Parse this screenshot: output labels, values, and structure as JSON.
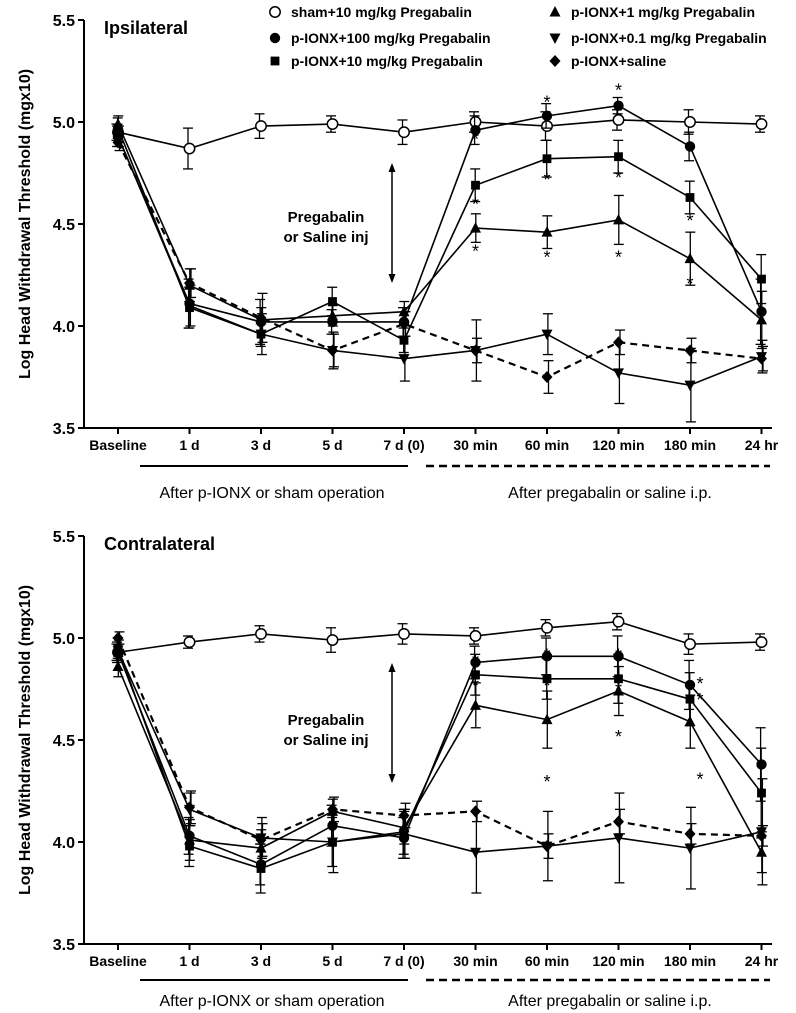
{
  "chart_data": [
    {
      "type": "line",
      "title": "Ipsilateral",
      "ylabel": "Log Head Withdrawal Threshold (mgx10)",
      "xlabel": "",
      "ylim": [
        3.5,
        5.5
      ],
      "yticks": [
        "3.5",
        "4.0",
        "4.5",
        "5.0",
        "5.5"
      ],
      "categories": [
        "Baseline",
        "1 d",
        "3 d",
        "5 d",
        "7 d (0)",
        "30 min",
        "60 min",
        "120 min",
        "180 min",
        "24 hr"
      ],
      "phase_labels": [
        "After p-IONX or sham operation",
        "After pregabalin or saline i.p."
      ],
      "annotation": [
        "Pregabalin",
        "or Saline inj"
      ],
      "legend_position": "top-right",
      "grid": false,
      "series": [
        {
          "name": "sham+10 mg/kg Pregabalin",
          "marker": "open-circle",
          "dashed": false,
          "values": [
            4.95,
            4.87,
            4.98,
            4.99,
            4.95,
            5.0,
            4.98,
            5.01,
            5.0,
            4.99
          ],
          "errors": [
            0.04,
            0.1,
            0.06,
            0.04,
            0.06,
            0.05,
            0.07,
            0.05,
            0.06,
            0.04
          ]
        },
        {
          "name": "p-IONX+100 mg/kg Pregabalin",
          "marker": "filled-circle",
          "dashed": false,
          "values": [
            4.93,
            4.11,
            4.02,
            4.02,
            4.02,
            4.96,
            5.03,
            5.08,
            4.88,
            4.07
          ],
          "errors": [
            0.05,
            0.12,
            0.11,
            0.06,
            0.07,
            0.07,
            0.06,
            0.04,
            0.07,
            0.16
          ]
        },
        {
          "name": "p-IONX+10 mg/kg Pregabalin",
          "marker": "filled-square",
          "dashed": false,
          "values": [
            4.97,
            4.09,
            3.96,
            4.12,
            3.93,
            4.69,
            4.82,
            4.83,
            4.63,
            4.23
          ],
          "errors": [
            0.05,
            0.1,
            0.06,
            0.07,
            0.06,
            0.08,
            0.09,
            0.08,
            0.08,
            0.12
          ]
        },
        {
          "name": "p-IONX+1 mg/kg Pregabalin",
          "marker": "filled-triangle-up",
          "dashed": false,
          "values": [
            4.99,
            4.2,
            4.03,
            4.05,
            4.07,
            4.48,
            4.46,
            4.52,
            4.33,
            4.03
          ],
          "errors": [
            0.04,
            0.08,
            0.06,
            0.05,
            0.05,
            0.07,
            0.08,
            0.12,
            0.13,
            0.14
          ]
        },
        {
          "name": "p-IONX+0.1 mg/kg Pregabalin",
          "marker": "filled-triangle-down",
          "dashed": false,
          "values": [
            4.93,
            4.1,
            3.96,
            3.88,
            3.84,
            3.88,
            3.96,
            3.77,
            3.71,
            3.85
          ],
          "errors": [
            0.05,
            0.1,
            0.1,
            0.09,
            0.11,
            0.15,
            0.1,
            0.15,
            0.18,
            0.08
          ]
        },
        {
          "name": "p-IONX+saline",
          "marker": "filled-diamond",
          "dashed": true,
          "values": [
            4.9,
            4.21,
            4.04,
            3.88,
            4.01,
            3.88,
            3.75,
            3.92,
            3.88,
            3.84
          ],
          "errors": [
            0.04,
            0.07,
            0.12,
            0.08,
            0.06,
            0.06,
            0.08,
            0.06,
            0.06,
            0.06
          ]
        }
      ],
      "significance_marks": [
        {
          "category": "30 min",
          "y": 4.93
        },
        {
          "category": "30 min",
          "y": 4.61
        },
        {
          "category": "30 min",
          "y": 4.38
        },
        {
          "category": "60 min",
          "y": 5.11
        },
        {
          "category": "60 min",
          "y": 4.73
        },
        {
          "category": "60 min",
          "y": 4.35
        },
        {
          "category": "120 min",
          "y": 5.17
        },
        {
          "category": "120 min",
          "y": 4.74
        },
        {
          "category": "120 min",
          "y": 4.35
        },
        {
          "category": "180 min",
          "y": 4.88
        },
        {
          "category": "180 min",
          "y": 4.53
        },
        {
          "category": "180 min",
          "y": 4.22
        }
      ]
    },
    {
      "type": "line",
      "title": "Contralateral",
      "ylabel": "Log Head Withdrawal Threshold (mgx10)",
      "xlabel": "",
      "ylim": [
        3.5,
        5.5
      ],
      "yticks": [
        "3.5",
        "4.0",
        "4.5",
        "5.0",
        "5.5"
      ],
      "categories": [
        "Baseline",
        "1 d",
        "3 d",
        "5 d",
        "7 d (0)",
        "30 min",
        "60 min",
        "120 min",
        "180 min",
        "24 hr"
      ],
      "phase_labels": [
        "After p-IONX or sham operation",
        "After pregabalin or saline i.p."
      ],
      "annotation": [
        "Pregabalin",
        "or Saline inj"
      ],
      "grid": false,
      "series": [
        {
          "name": "sham+10 mg/kg Pregabalin",
          "marker": "open-circle",
          "dashed": false,
          "values": [
            4.93,
            4.98,
            5.02,
            4.99,
            5.02,
            5.01,
            5.05,
            5.08,
            4.97,
            4.98
          ],
          "errors": [
            0.04,
            0.03,
            0.04,
            0.06,
            0.05,
            0.04,
            0.04,
            0.04,
            0.05,
            0.04
          ]
        },
        {
          "name": "p-IONX+100 mg/kg Pregabalin",
          "marker": "filled-circle",
          "dashed": false,
          "values": [
            4.93,
            4.03,
            3.89,
            4.08,
            4.02,
            4.88,
            4.91,
            4.91,
            4.77,
            4.38
          ],
          "errors": [
            0.05,
            0.09,
            0.1,
            0.1,
            0.1,
            0.08,
            0.09,
            0.1,
            0.12,
            0.18
          ]
        },
        {
          "name": "p-IONX+10 mg/kg Pregabalin",
          "marker": "filled-square",
          "dashed": false,
          "values": [
            4.95,
            3.98,
            3.87,
            4.0,
            4.05,
            4.82,
            4.8,
            4.8,
            4.7,
            4.24
          ],
          "errors": [
            0.05,
            0.1,
            0.12,
            0.12,
            0.11,
            0.1,
            0.1,
            0.12,
            0.13,
            0.22
          ]
        },
        {
          "name": "p-IONX+1 mg/kg Pregabalin",
          "marker": "filled-triangle-up",
          "dashed": false,
          "values": [
            4.86,
            4.01,
            3.97,
            4.15,
            4.07,
            4.67,
            4.6,
            4.74,
            4.59,
            3.95
          ],
          "errors": [
            0.05,
            0.1,
            0.09,
            0.06,
            0.08,
            0.11,
            0.14,
            0.12,
            0.13,
            0.1
          ]
        },
        {
          "name": "p-IONX+0.1 mg/kg Pregabalin",
          "marker": "filled-triangle-down",
          "dashed": false,
          "values": [
            4.94,
            4.16,
            4.02,
            4.0,
            4.04,
            3.95,
            3.98,
            4.02,
            3.97,
            4.05
          ],
          "errors": [
            0.05,
            0.08,
            0.1,
            0.15,
            0.12,
            0.2,
            0.17,
            0.22,
            0.2,
            0.26
          ]
        },
        {
          "name": "p-IONX+saline",
          "marker": "filled-diamond",
          "dashed": true,
          "values": [
            5.0,
            4.17,
            4.01,
            4.16,
            4.13,
            4.15,
            3.98,
            4.1,
            4.04,
            4.03
          ],
          "errors": [
            0.03,
            0.08,
            0.08,
            0.06,
            0.06,
            0.05,
            0.06,
            0.06,
            0.05,
            0.05
          ]
        }
      ],
      "significance_marks": [
        {
          "category": "30 min",
          "y": 4.9
        },
        {
          "category": "30 min",
          "y": 4.78
        },
        {
          "category": "60 min",
          "y": 4.93
        },
        {
          "category": "60 min",
          "y": 4.78
        },
        {
          "category": "60 min",
          "y": 4.31
        },
        {
          "category": "120 min",
          "y": 4.93
        },
        {
          "category": "120 min",
          "y": 4.76
        },
        {
          "category": "120 min",
          "y": 4.53
        },
        {
          "category": "180 min",
          "y": 4.79
        },
        {
          "category": "180 min",
          "y": 4.71
        },
        {
          "category": "180 min",
          "y": 4.32
        }
      ]
    }
  ]
}
